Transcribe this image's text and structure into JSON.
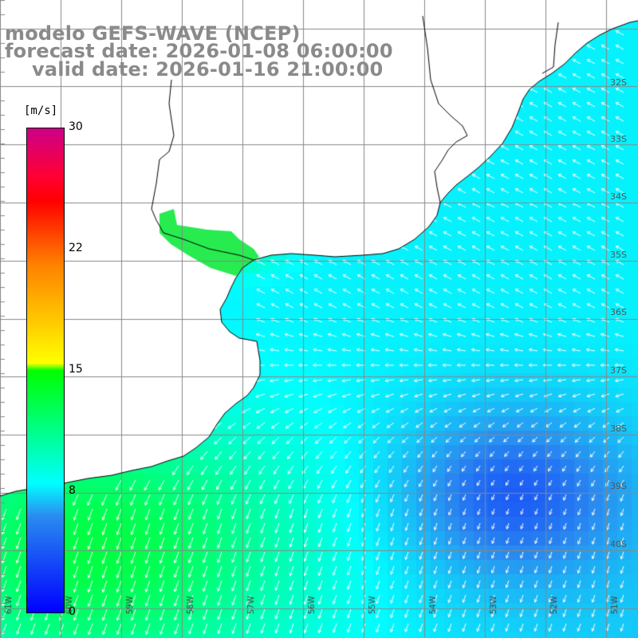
{
  "title": {
    "line1": "modelo GEFS-WAVE (NCEP)",
    "line2": "forecast date: 2026-01-08 06:00:00",
    "line3": "valid date: 2026-01-16 21:00:00"
  },
  "legend": {
    "unit": "[m/s]",
    "min": 0,
    "max": 30,
    "tick_labels": [
      "30",
      "22",
      "15",
      "8",
      "0"
    ],
    "tick_values": [
      30,
      22,
      15,
      8,
      0
    ],
    "colors": [
      "#0000ff",
      "#00ffff",
      "#00ff00",
      "#ffff00",
      "#ff8000",
      "#ff0000",
      "#cc0088"
    ]
  },
  "map": {
    "land_color": "#ffffff",
    "coast_color": "#000000",
    "grid_color": "#888888",
    "arrow_color": "#ffffff",
    "lat_labels": [
      "32S",
      "33S",
      "34S",
      "35S",
      "36S",
      "37S",
      "38S",
      "39S",
      "40S"
    ],
    "lat_values": [
      -32,
      -33,
      -34,
      -35,
      -36,
      -37,
      -38,
      -39,
      -40
    ],
    "lon_labels": [
      "61W",
      "60W",
      "59W",
      "58W",
      "57W",
      "56W",
      "55W",
      "54W",
      "53W",
      "52W",
      "51W"
    ]
  }
}
